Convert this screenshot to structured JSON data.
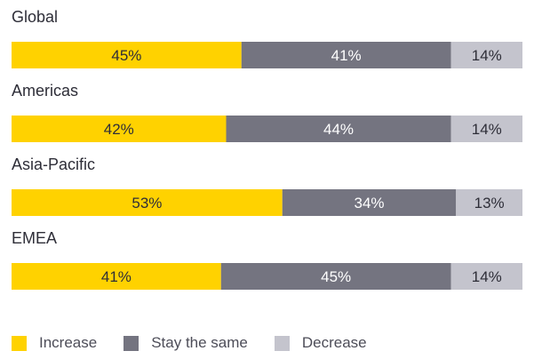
{
  "chart_data": {
    "type": "bar",
    "orientation": "horizontal",
    "stacked": true,
    "percent_stacked": true,
    "categories": [
      "Global",
      "Americas",
      "Asia-Pacific",
      "EMEA"
    ],
    "series": [
      {
        "name": "Increase",
        "values": [
          45,
          42,
          53,
          41
        ],
        "color": "#ffd200",
        "label_color": "#2e2e38"
      },
      {
        "name": "Stay the same",
        "values": [
          41,
          44,
          34,
          45
        ],
        "color": "#747480",
        "label_color": "#ffffff"
      },
      {
        "name": "Decrease",
        "values": [
          14,
          14,
          13,
          14
        ],
        "color": "#c4c4cd",
        "label_color": "#2e2e38"
      }
    ],
    "value_suffix": "%",
    "xlim": [
      0,
      100
    ],
    "grid": false,
    "legend_position": "bottom-left"
  }
}
